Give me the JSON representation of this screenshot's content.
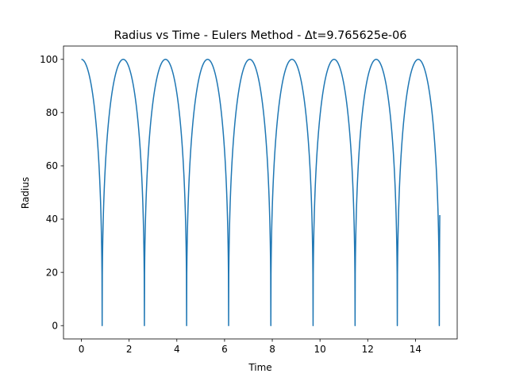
{
  "chart_data": {
    "type": "line",
    "title": "Radius vs Time - Eulers Method - Δt=9.765625e-06",
    "xlabel": "Time",
    "ylabel": "Radius",
    "xlim": [
      -0.75,
      15.75
    ],
    "ylim": [
      -5,
      105
    ],
    "xticks": [
      0,
      2,
      4,
      6,
      8,
      10,
      12,
      14
    ],
    "yticks": [
      0,
      20,
      40,
      60,
      80,
      100
    ],
    "grid": false,
    "legend": "none",
    "series": [
      {
        "color": "#1f77b4",
        "initial_radius": 100,
        "minimum_radius": 0,
        "collapse_times": [
          0.87,
          2.64,
          4.41,
          6.17,
          7.94,
          9.71,
          11.47,
          13.24,
          15.0
        ],
        "peak_times": [
          0,
          1.75,
          3.52,
          5.29,
          7.05,
          8.82,
          10.59,
          12.35,
          14.12
        ],
        "end_time": 15.02,
        "end_radius": 41.5
      }
    ]
  }
}
